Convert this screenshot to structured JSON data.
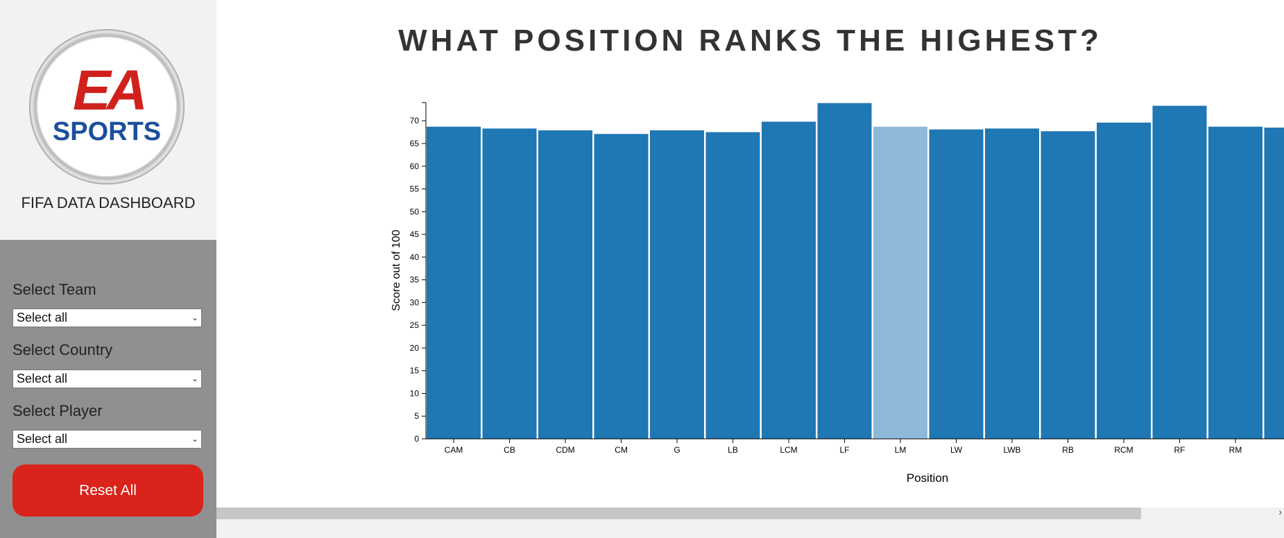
{
  "sidebar": {
    "logo": {
      "icon": "ea-sports-logo-icon",
      "top_text": "EA",
      "bottom_text": "SPORTS"
    },
    "dashboard_title": "FIFA DATA DASHBOARD",
    "filters": [
      {
        "label": "Select Team",
        "value": "Select all"
      },
      {
        "label": "Select Country",
        "value": "Select all"
      },
      {
        "label": "Select Player",
        "value": "Select all"
      }
    ],
    "reset_label": "Reset All"
  },
  "main": {
    "title": "WHAT POSITION RANKS THE HIGHEST?"
  },
  "colors": {
    "bar": "#1f77b4",
    "bar_highlight": "#8fb9d9",
    "reset": "#d9231b"
  },
  "chart_data": {
    "type": "bar",
    "categories": [
      "CAM",
      "CB",
      "CDM",
      "CM",
      "G",
      "LB",
      "LCM",
      "LF",
      "LM",
      "LW",
      "LWB",
      "RB",
      "RCM",
      "RF",
      "RM",
      ""
    ],
    "values": [
      68.7,
      68.3,
      67.9,
      67.1,
      67.9,
      67.5,
      69.8,
      73.9,
      68.7,
      68.1,
      68.3,
      67.7,
      69.6,
      73.3,
      68.7,
      68.5
    ],
    "highlight_index": 8,
    "xlabel": "Position",
    "ylabel": "Score out of 100",
    "yticks": [
      0,
      5,
      10,
      15,
      20,
      25,
      30,
      35,
      40,
      45,
      50,
      55,
      60,
      65,
      70
    ],
    "ylim": [
      0,
      74
    ],
    "grid": false
  }
}
